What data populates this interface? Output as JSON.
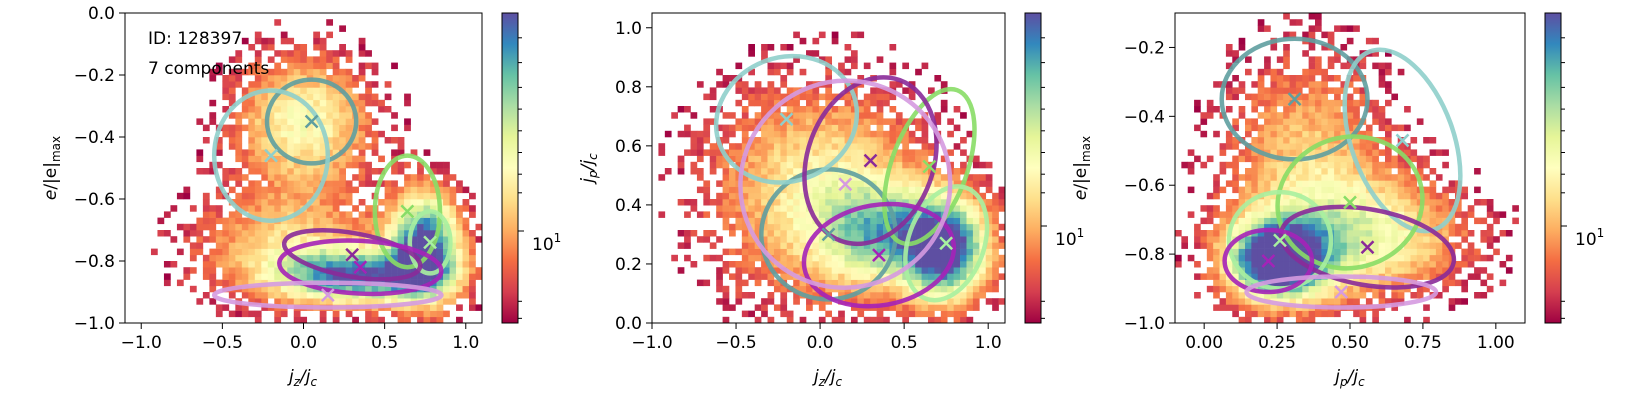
{
  "figure": {
    "annotation_lines": [
      "ID: 128397",
      "7 components"
    ]
  },
  "component_colors": [
    "#5f9ea0",
    "#8fcfcb",
    "#88dd66",
    "#a8f0a0",
    "#8a2a99",
    "#a522b8",
    "#d59ae0"
  ],
  "colormap": [
    "#9e0142",
    "#d53e4f",
    "#f46d43",
    "#fdae61",
    "#fee08b",
    "#ffffbf",
    "#e6f598",
    "#abdda4",
    "#66c2a5",
    "#3288bd",
    "#5e4fa2"
  ],
  "chart_data": [
    {
      "type": "heatmap",
      "id": "panel-1",
      "xlabel": "j_z/j_c",
      "ylabel": "e/|e|_max",
      "xlim": [
        -1.1,
        1.1
      ],
      "ylim": [
        -1.0,
        0.0
      ],
      "xticks": [
        -1.0,
        -0.5,
        0.0,
        0.5,
        1.0
      ],
      "xtick_labels": [
        "−1.0",
        "−0.5",
        "0.0",
        "0.5",
        "1.0"
      ],
      "yticks": [
        -1.0,
        -0.8,
        -0.6,
        -0.4,
        -0.2,
        0.0
      ],
      "ytick_labels": [
        "−1.0",
        "−0.8",
        "−0.6",
        "−0.4",
        "−0.2",
        "0.0"
      ],
      "colorbar": {
        "scale": "log",
        "labeled_tick": "10^1",
        "label_text": "10"
      },
      "density_clusters": [
        {
          "cx": 0.0,
          "cy": -0.35,
          "sx": 0.3,
          "sy": 0.15,
          "w": 0.6
        },
        {
          "cx": 0.35,
          "cy": -0.85,
          "sx": 0.35,
          "sy": 0.06,
          "w": 1.0
        },
        {
          "cx": 0.75,
          "cy": -0.75,
          "sx": 0.15,
          "sy": 0.12,
          "w": 1.2
        },
        {
          "cx": -0.1,
          "cy": -0.75,
          "sx": 0.4,
          "sy": 0.12,
          "w": 0.45
        }
      ],
      "components": [
        {
          "color_index": 0,
          "cx": 0.05,
          "cy": -0.35,
          "w": 0.55,
          "h": 0.27,
          "angle": 0
        },
        {
          "color_index": 1,
          "cx": -0.2,
          "cy": -0.46,
          "w": 0.7,
          "h": 0.42,
          "angle": 0
        },
        {
          "color_index": 2,
          "cx": 0.64,
          "cy": -0.64,
          "w": 0.4,
          "h": 0.36,
          "angle": 0
        },
        {
          "color_index": 3,
          "cx": 0.78,
          "cy": -0.74,
          "w": 0.25,
          "h": 0.2,
          "angle": 0
        },
        {
          "color_index": 4,
          "cx": 0.3,
          "cy": -0.78,
          "w": 0.85,
          "h": 0.14,
          "angle": -10
        },
        {
          "color_index": 5,
          "cx": 0.35,
          "cy": -0.82,
          "w": 1.0,
          "h": 0.17,
          "angle": -3
        },
        {
          "color_index": 6,
          "cx": 0.15,
          "cy": -0.91,
          "w": 1.4,
          "h": 0.08,
          "angle": 0
        }
      ]
    },
    {
      "type": "heatmap",
      "id": "panel-2",
      "xlabel": "j_z/j_c",
      "ylabel": "j_p/j_c",
      "xlim": [
        -1.0,
        1.1
      ],
      "ylim": [
        0.0,
        1.05
      ],
      "xticks": [
        -1.0,
        -0.5,
        0.0,
        0.5,
        1.0
      ],
      "xtick_labels": [
        "−1.0",
        "−0.5",
        "0.0",
        "0.5",
        "1.0"
      ],
      "yticks": [
        0.0,
        0.2,
        0.4,
        0.6,
        0.8,
        1.0
      ],
      "ytick_labels": [
        "0.0",
        "0.2",
        "0.4",
        "0.6",
        "0.8",
        "1.0"
      ],
      "colorbar": {
        "scale": "log",
        "labeled_tick": "10^1",
        "label_text": "10"
      },
      "density_clusters": [
        {
          "cx": 0.0,
          "cy": 0.45,
          "sx": 0.45,
          "sy": 0.25,
          "w": 0.55
        },
        {
          "cx": 0.75,
          "cy": 0.25,
          "sx": 0.18,
          "sy": 0.12,
          "w": 1.2
        },
        {
          "cx": 0.35,
          "cy": 0.3,
          "sx": 0.25,
          "sy": 0.12,
          "w": 0.6
        }
      ],
      "components": [
        {
          "color_index": 0,
          "cx": 0.05,
          "cy": 0.3,
          "w": 0.8,
          "h": 0.44,
          "angle": 5
        },
        {
          "color_index": 1,
          "cx": -0.2,
          "cy": 0.69,
          "w": 0.85,
          "h": 0.42,
          "angle": 20
        },
        {
          "color_index": 2,
          "cx": 0.65,
          "cy": 0.53,
          "w": 0.45,
          "h": 0.55,
          "angle": -20
        },
        {
          "color_index": 3,
          "cx": 0.75,
          "cy": 0.27,
          "w": 0.45,
          "h": 0.4,
          "angle": -20
        },
        {
          "color_index": 4,
          "cx": 0.3,
          "cy": 0.55,
          "w": 0.75,
          "h": 0.58,
          "angle": -20
        },
        {
          "color_index": 5,
          "cx": 0.35,
          "cy": 0.23,
          "w": 0.9,
          "h": 0.34,
          "angle": 10
        },
        {
          "color_index": 6,
          "cx": 0.15,
          "cy": 0.47,
          "w": 1.25,
          "h": 0.7,
          "angle": 20
        }
      ]
    },
    {
      "type": "heatmap",
      "id": "panel-3",
      "xlabel": "j_p/j_c",
      "ylabel": "e/|e|_max",
      "xlim": [
        -0.1,
        1.1
      ],
      "ylim": [
        -1.0,
        -0.1
      ],
      "xticks": [
        0.0,
        0.25,
        0.5,
        0.75,
        1.0
      ],
      "xtick_labels": [
        "0.00",
        "0.25",
        "0.50",
        "0.75",
        "1.00"
      ],
      "yticks": [
        -1.0,
        -0.8,
        -0.6,
        -0.4,
        -0.2
      ],
      "ytick_labels": [
        "−1.0",
        "−0.8",
        "−0.6",
        "−0.4",
        "−0.2"
      ],
      "colorbar": {
        "scale": "log",
        "labeled_tick": "10^1",
        "label_text": "10"
      },
      "density_clusters": [
        {
          "cx": 0.25,
          "cy": -0.82,
          "sx": 0.12,
          "sy": 0.08,
          "w": 1.3
        },
        {
          "cx": 0.35,
          "cy": -0.5,
          "sx": 0.2,
          "sy": 0.2,
          "w": 0.4
        },
        {
          "cx": 0.55,
          "cy": -0.75,
          "sx": 0.25,
          "sy": 0.12,
          "w": 0.6
        }
      ],
      "components": [
        {
          "color_index": 0,
          "cx": 0.31,
          "cy": -0.35,
          "w": 0.5,
          "h": 0.35,
          "angle": 0
        },
        {
          "color_index": 1,
          "cx": 0.68,
          "cy": -0.47,
          "w": 0.35,
          "h": 0.55,
          "angle": 20
        },
        {
          "color_index": 2,
          "cx": 0.5,
          "cy": -0.65,
          "w": 0.5,
          "h": 0.38,
          "angle": 15
        },
        {
          "color_index": 3,
          "cx": 0.26,
          "cy": -0.76,
          "w": 0.35,
          "h": 0.28,
          "angle": 0
        },
        {
          "color_index": 4,
          "cx": 0.56,
          "cy": -0.78,
          "w": 0.6,
          "h": 0.22,
          "angle": -10
        },
        {
          "color_index": 5,
          "cx": 0.22,
          "cy": -0.82,
          "w": 0.3,
          "h": 0.18,
          "angle": 0
        },
        {
          "color_index": 6,
          "cx": 0.47,
          "cy": -0.91,
          "w": 0.65,
          "h": 0.09,
          "angle": 0
        }
      ]
    }
  ]
}
